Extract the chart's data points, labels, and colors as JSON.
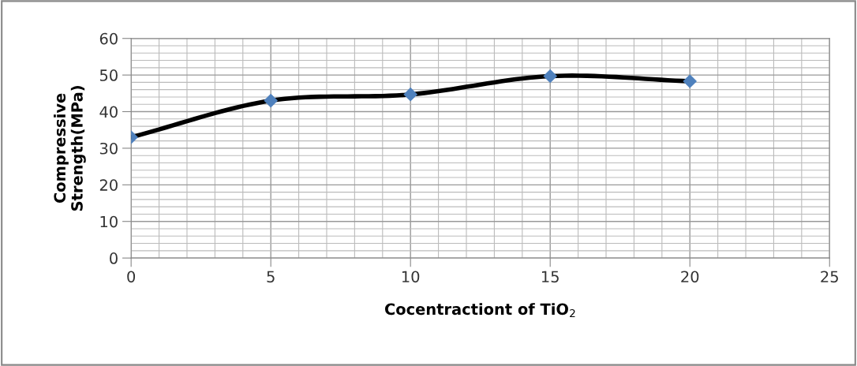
{
  "chart_data": {
    "type": "line",
    "xlabel": "Cocentractiont of TiO$_{2}$",
    "ylabel": "Compressive\nStrength(MPa)",
    "x": [
      0,
      5,
      10,
      15,
      20
    ],
    "series": [
      {
        "color": "#4f81bd",
        "values": [
          33,
          43,
          44.7,
          49.7,
          48.3
        ]
      }
    ],
    "xlim": [
      0,
      25
    ],
    "xticks": [
      0,
      5,
      10,
      15,
      20,
      25
    ],
    "ylim": [
      0,
      60
    ],
    "yticks": [
      0,
      10,
      20,
      30,
      40,
      50,
      60
    ],
    "grid": true,
    "marker": "diamond",
    "line_style": "solid"
  }
}
